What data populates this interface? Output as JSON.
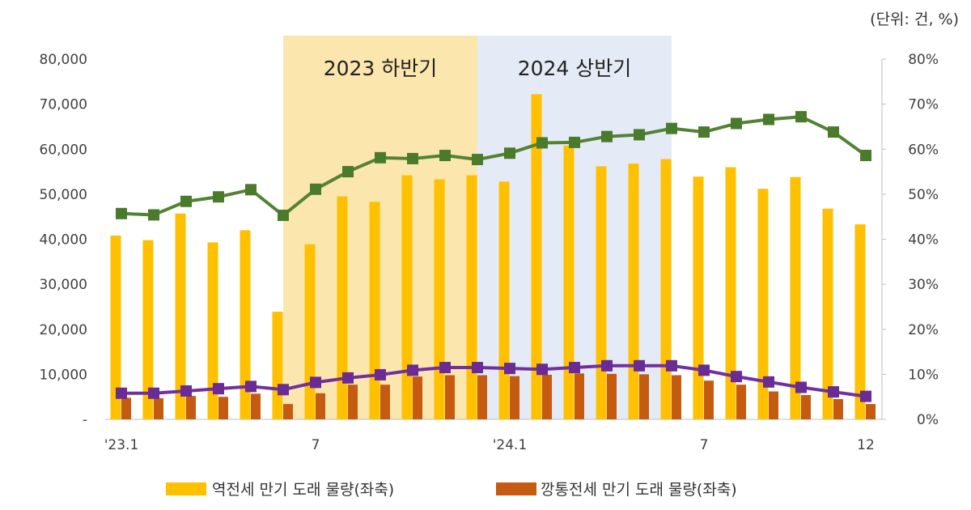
{
  "chart_data": {
    "type": "bar",
    "unit_note": "(단위: 건, %)",
    "periods": [
      {
        "label": "2023 하반기",
        "from_index": 6,
        "to_index": 11,
        "color": "#fbe6ad"
      },
      {
        "label": "2024 상반기",
        "from_index": 12,
        "to_index": 17,
        "color": "#e5ebf6"
      }
    ],
    "x_tick_labels": [
      {
        "index": 0,
        "label": "'23.1"
      },
      {
        "index": 6,
        "label": "7"
      },
      {
        "index": 12,
        "label": "'24.1"
      },
      {
        "index": 18,
        "label": "7"
      },
      {
        "index": 23,
        "label": "12"
      }
    ],
    "left_axis": {
      "ylim": [
        0,
        80000
      ],
      "ticks": [
        "-",
        "10,000",
        "20,000",
        "30,000",
        "40,000",
        "50,000",
        "60,000",
        "70,000",
        "80,000"
      ]
    },
    "right_axis": {
      "ylim": [
        0,
        80
      ],
      "ticks": [
        "0%",
        "10%",
        "20%",
        "30%",
        "40%",
        "50%",
        "60%",
        "70%",
        "80%"
      ]
    },
    "series": [
      {
        "name": "역전세 만기 도래 물량(좌축)",
        "kind": "bar",
        "axis": "left",
        "color": "#ffc000",
        "values": [
          40800,
          39800,
          45700,
          39300,
          42000,
          23900,
          38900,
          49500,
          48300,
          54200,
          53300,
          54200,
          52800,
          72200,
          60800,
          56200,
          56800,
          57800,
          53900,
          56000,
          51200,
          53800,
          46800,
          43300
        ]
      },
      {
        "name": "깡통전세 만기 도래 물량(좌축)",
        "kind": "bar",
        "axis": "left",
        "color": "#c55a11",
        "values": [
          4800,
          4700,
          5200,
          5000,
          5700,
          3400,
          5800,
          7700,
          7700,
          9500,
          9800,
          9800,
          9600,
          9900,
          10200,
          10100,
          10000,
          9800,
          8600,
          7700,
          6200,
          5400,
          4500,
          3400
        ]
      },
      {
        "axis": "right",
        "kind": "line",
        "color": "#548235",
        "marker_color": "#4a7b2c",
        "values": [
          45.7,
          45.4,
          48.4,
          49.4,
          51.0,
          45.3,
          51.1,
          55.0,
          58.1,
          57.9,
          58.6,
          57.7,
          59.1,
          61.4,
          61.5,
          62.8,
          63.2,
          64.6,
          63.8,
          65.7,
          66.6,
          67.2,
          63.8,
          58.6
        ]
      },
      {
        "axis": "right",
        "kind": "line",
        "color": "#7030a0",
        "marker_color": "#6a2c94",
        "values": [
          5.8,
          5.8,
          6.3,
          6.8,
          7.3,
          6.6,
          8.2,
          9.2,
          9.9,
          10.9,
          11.5,
          11.5,
          11.3,
          11.1,
          11.5,
          11.9,
          11.9,
          11.9,
          10.9,
          9.5,
          8.3,
          7.1,
          6.1,
          5.1
        ]
      }
    ],
    "grid": false,
    "legend": {
      "position": "bottom"
    }
  }
}
